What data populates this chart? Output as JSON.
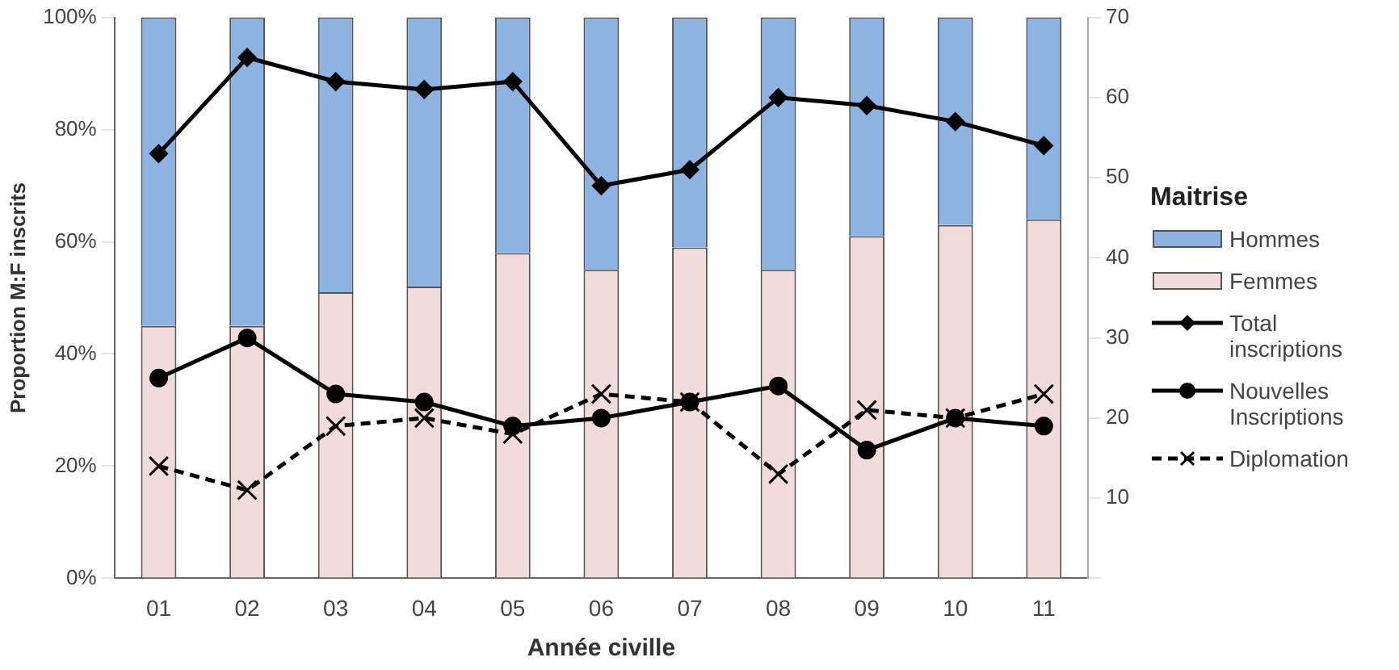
{
  "chart_data": {
    "type": "bar",
    "stacked": true,
    "xlabel": "Année civille",
    "ylabel": "Proportion M:F inscrits",
    "legend_title": "Maitrise",
    "legend": "right",
    "grid": false,
    "categories": [
      "01",
      "02",
      "03",
      "04",
      "05",
      "06",
      "07",
      "08",
      "09",
      "10",
      "11"
    ],
    "ylim": [
      0,
      100
    ],
    "yticks": [
      {
        "value": 0,
        "label": "0%"
      },
      {
        "value": 20,
        "label": "20%"
      },
      {
        "value": 40,
        "label": "40%"
      },
      {
        "value": 60,
        "label": "60%"
      },
      {
        "value": 80,
        "label": "80%"
      },
      {
        "value": 100,
        "label": "100%"
      }
    ],
    "y2lim": [
      0,
      70
    ],
    "y2ticks": [
      {
        "value": 0,
        "label": null
      },
      10,
      20,
      30,
      40,
      50,
      60,
      70
    ],
    "series": [
      {
        "name": "Femmes",
        "color": "#f2dcdb",
        "values": [
          45,
          45,
          51,
          52,
          58,
          55,
          59,
          55,
          61,
          63,
          64
        ]
      },
      {
        "name": "Hommes",
        "color": "#8db3e2",
        "values": [
          55,
          55,
          49,
          48,
          42,
          45,
          41,
          45,
          39,
          37,
          36
        ]
      },
      {
        "name": "Total inscriptions",
        "type": "line",
        "axis": "y2",
        "color": "#000000",
        "marker": "diamond",
        "line_style": "solid",
        "values": [
          53,
          65,
          62,
          61,
          62,
          49,
          51,
          60,
          59,
          57,
          54
        ]
      },
      {
        "name": "Nouvelles Inscriptions",
        "type": "line",
        "axis": "y2",
        "color": "#000000",
        "marker": "circle",
        "line_style": "solid",
        "values": [
          25,
          30,
          23,
          22,
          19,
          20,
          22,
          24,
          16,
          20,
          19
        ]
      },
      {
        "name": "Diplomation",
        "type": "line",
        "axis": "y2",
        "color": "#000000",
        "marker": "cross",
        "line_style": "dashed",
        "values": [
          14,
          11,
          19,
          20,
          18,
          23,
          22,
          13,
          21,
          20,
          23
        ]
      }
    ]
  }
}
